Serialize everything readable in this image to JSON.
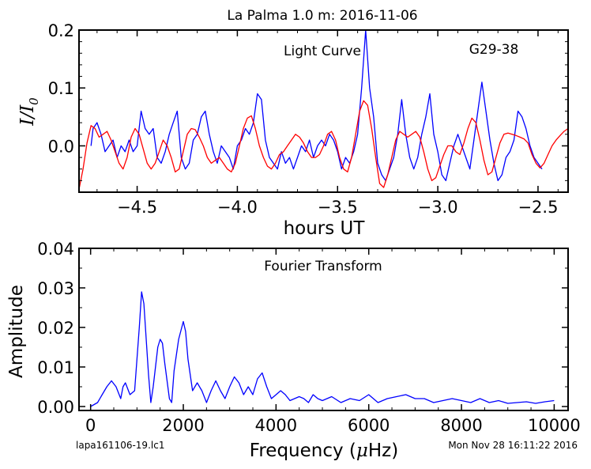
{
  "figure": {
    "title": "La Palma 1.0 m:  2016-11-06",
    "footer_left": "lapa161106-19.lc1",
    "footer_right": "Mon Nov 28 16:11:22 2016"
  },
  "chart_data": [
    {
      "type": "line",
      "title": "La Palma 1.0 m:  2016-11-06",
      "xlabel": "hours UT",
      "ylabel": "I/I₀",
      "annotations": [
        "Light Curve",
        "G29-38"
      ],
      "xlim": [
        -4.79,
        -2.35
      ],
      "ylim": [
        -0.08,
        0.2
      ],
      "xticks": [
        -4.5,
        -4.0,
        -3.5,
        -3.0,
        -2.5
      ],
      "xtick_labels": [
        "−4.5",
        "−4.0",
        "−3.5",
        "−3.0",
        "−2.5"
      ],
      "yticks": [
        0.0,
        0.1,
        0.2
      ],
      "ytick_labels": [
        "0.0",
        "0.1",
        "0.2"
      ],
      "grid": false,
      "series": [
        {
          "color": "#0000ff",
          "x": [
            -4.73,
            -4.72,
            -4.7,
            -4.68,
            -4.66,
            -4.64,
            -4.62,
            -4.6,
            -4.58,
            -4.56,
            -4.54,
            -4.52,
            -4.5,
            -4.48,
            -4.46,
            -4.44,
            -4.42,
            -4.4,
            -4.38,
            -4.36,
            -4.34,
            -4.32,
            -4.3,
            -4.28,
            -4.26,
            -4.24,
            -4.22,
            -4.2,
            -4.18,
            -4.16,
            -4.14,
            -4.12,
            -4.1,
            -4.08,
            -4.06,
            -4.04,
            -4.02,
            -4.0,
            -3.98,
            -3.96,
            -3.94,
            -3.92,
            -3.9,
            -3.88,
            -3.86,
            -3.84,
            -3.82,
            -3.8,
            -3.78,
            -3.76,
            -3.74,
            -3.72,
            -3.7,
            -3.68,
            -3.66,
            -3.64,
            -3.62,
            -3.6,
            -3.58,
            -3.56,
            -3.54,
            -3.52,
            -3.5,
            -3.48,
            -3.46,
            -3.44,
            -3.42,
            -3.4,
            -3.38,
            -3.36,
            -3.34,
            -3.32,
            -3.3,
            -3.28,
            -3.26,
            -3.24,
            -3.22,
            -3.2,
            -3.18,
            -3.16,
            -3.14,
            -3.12,
            -3.1,
            -3.08,
            -3.06,
            -3.04,
            -3.02,
            -3.0,
            -2.98,
            -2.96,
            -2.94,
            -2.92,
            -2.9,
            -2.88,
            -2.86,
            -2.84,
            -2.82,
            -2.8,
            -2.78,
            -2.76,
            -2.74,
            -2.72,
            -2.7,
            -2.68,
            -2.66,
            -2.64,
            -2.62,
            -2.6,
            -2.58,
            -2.56,
            -2.54,
            -2.52,
            -2.5,
            -2.48
          ],
          "y": [
            0.0,
            0.03,
            0.04,
            0.02,
            -0.01,
            0.0,
            0.01,
            -0.02,
            0.0,
            -0.01,
            0.01,
            -0.01,
            0.0,
            0.06,
            0.03,
            0.02,
            0.03,
            -0.02,
            -0.03,
            -0.01,
            0.02,
            0.04,
            0.06,
            -0.02,
            -0.04,
            -0.03,
            0.01,
            0.02,
            0.05,
            0.06,
            0.02,
            -0.01,
            -0.03,
            0.0,
            -0.01,
            -0.02,
            -0.04,
            0.0,
            0.01,
            0.03,
            0.02,
            0.04,
            0.09,
            0.08,
            0.01,
            -0.02,
            -0.03,
            -0.04,
            -0.01,
            -0.03,
            -0.02,
            -0.04,
            -0.02,
            0.0,
            -0.01,
            0.01,
            -0.02,
            0.0,
            0.01,
            0.0,
            0.02,
            0.01,
            -0.01,
            -0.04,
            -0.02,
            -0.03,
            -0.01,
            0.02,
            0.1,
            0.2,
            0.1,
            0.05,
            -0.03,
            -0.05,
            -0.06,
            -0.04,
            -0.02,
            0.02,
            0.08,
            0.02,
            -0.02,
            -0.04,
            -0.02,
            0.02,
            0.05,
            0.09,
            0.02,
            -0.01,
            -0.05,
            -0.06,
            -0.03,
            0.0,
            0.02,
            0.0,
            -0.02,
            -0.04,
            0.01,
            0.06,
            0.11,
            0.06,
            0.01,
            -0.03,
            -0.06,
            -0.05,
            -0.02,
            -0.01,
            0.01,
            0.06,
            0.05,
            0.03,
            0.0,
            -0.02,
            -0.03,
            -0.04
          ]
        },
        {
          "color": "#ff0000",
          "x": [
            -4.79,
            -4.77,
            -4.75,
            -4.73,
            -4.71,
            -4.69,
            -4.67,
            -4.65,
            -4.63,
            -4.61,
            -4.59,
            -4.57,
            -4.55,
            -4.53,
            -4.51,
            -4.49,
            -4.47,
            -4.45,
            -4.43,
            -4.41,
            -4.39,
            -4.37,
            -4.35,
            -4.33,
            -4.31,
            -4.29,
            -4.27,
            -4.25,
            -4.23,
            -4.21,
            -4.19,
            -4.17,
            -4.15,
            -4.13,
            -4.11,
            -4.09,
            -4.07,
            -4.05,
            -4.03,
            -4.01,
            -3.99,
            -3.97,
            -3.95,
            -3.93,
            -3.91,
            -3.89,
            -3.87,
            -3.85,
            -3.83,
            -3.81,
            -3.79,
            -3.77,
            -3.75,
            -3.73,
            -3.71,
            -3.69,
            -3.67,
            -3.65,
            -3.63,
            -3.61,
            -3.59,
            -3.57,
            -3.55,
            -3.53,
            -3.51,
            -3.49,
            -3.47,
            -3.45,
            -3.43,
            -3.41,
            -3.39,
            -3.37,
            -3.35,
            -3.33,
            -3.31,
            -3.29,
            -3.27,
            -3.25,
            -3.23,
            -3.21,
            -3.19,
            -3.17,
            -3.15,
            -3.13,
            -3.11,
            -3.09,
            -3.07,
            -3.05,
            -3.03,
            -3.01,
            -2.99,
            -2.97,
            -2.95,
            -2.93,
            -2.91,
            -2.89,
            -2.87,
            -2.85,
            -2.83,
            -2.81,
            -2.79,
            -2.77,
            -2.75,
            -2.73,
            -2.71,
            -2.69,
            -2.67,
            -2.65,
            -2.63,
            -2.61,
            -2.59,
            -2.57,
            -2.55,
            -2.53,
            -2.51,
            -2.49,
            -2.47,
            -2.45,
            -2.43,
            -2.41,
            -2.39,
            -2.37,
            -2.35
          ],
          "y": [
            -0.075,
            -0.04,
            0.005,
            0.035,
            0.03,
            0.015,
            0.02,
            0.025,
            0.01,
            -0.01,
            -0.03,
            -0.04,
            -0.02,
            0.015,
            0.03,
            0.02,
            -0.005,
            -0.03,
            -0.04,
            -0.03,
            -0.01,
            0.01,
            0.0,
            -0.02,
            -0.045,
            -0.04,
            -0.01,
            0.02,
            0.03,
            0.028,
            0.015,
            0.0,
            -0.02,
            -0.03,
            -0.025,
            -0.02,
            -0.03,
            -0.04,
            -0.045,
            -0.03,
            0.0,
            0.03,
            0.048,
            0.052,
            0.03,
            0.0,
            -0.02,
            -0.035,
            -0.04,
            -0.03,
            -0.015,
            -0.01,
            0.0,
            0.01,
            0.02,
            0.015,
            0.005,
            -0.01,
            -0.02,
            -0.02,
            -0.015,
            0.0,
            0.02,
            0.025,
            0.01,
            -0.02,
            -0.04,
            -0.045,
            -0.02,
            0.02,
            0.06,
            0.078,
            0.07,
            0.03,
            -0.02,
            -0.065,
            -0.072,
            -0.05,
            -0.02,
            0.01,
            0.025,
            0.02,
            0.015,
            0.02,
            0.025,
            0.015,
            -0.01,
            -0.04,
            -0.06,
            -0.055,
            -0.035,
            -0.015,
            0.0,
            0.0,
            -0.01,
            -0.015,
            0.005,
            0.03,
            0.048,
            0.04,
            0.01,
            -0.025,
            -0.05,
            -0.045,
            -0.02,
            0.005,
            0.02,
            0.022,
            0.02,
            0.018,
            0.015,
            0.012,
            0.005,
            -0.015,
            -0.03,
            -0.038,
            -0.03,
            -0.015,
            0.0,
            0.01,
            0.018,
            0.025,
            0.03
          ]
        }
      ]
    },
    {
      "type": "line",
      "title": "",
      "xlabel": "Frequency (μHz)",
      "ylabel": "Amplitude",
      "annotations": [
        "Fourier Transform"
      ],
      "xlim": [
        -250,
        10300
      ],
      "ylim": [
        -0.001,
        0.04
      ],
      "xticks": [
        0,
        2000,
        4000,
        6000,
        8000,
        10000
      ],
      "xtick_labels": [
        "0",
        "2000",
        "4000",
        "6000",
        "8000",
        "10000"
      ],
      "yticks": [
        0.0,
        0.01,
        0.02,
        0.03,
        0.04
      ],
      "ytick_labels": [
        "0.00",
        "0.01",
        "0.02",
        "0.03",
        "0.04"
      ],
      "grid": false,
      "series": [
        {
          "color": "#0000ff",
          "x": [
            0,
            150,
            250,
            350,
            450,
            550,
            650,
            700,
            750,
            850,
            950,
            1050,
            1100,
            1150,
            1250,
            1300,
            1350,
            1450,
            1500,
            1550,
            1600,
            1700,
            1750,
            1800,
            1900,
            2000,
            2050,
            2100,
            2200,
            2300,
            2400,
            2500,
            2600,
            2700,
            2800,
            2900,
            3000,
            3100,
            3200,
            3300,
            3400,
            3500,
            3600,
            3700,
            3800,
            3900,
            4000,
            4100,
            4200,
            4300,
            4400,
            4500,
            4600,
            4700,
            4800,
            4900,
            5000,
            5200,
            5400,
            5600,
            5800,
            6000,
            6200,
            6400,
            6600,
            6800,
            7000,
            7200,
            7400,
            7600,
            7800,
            8000,
            8200,
            8400,
            8600,
            8800,
            9000,
            9200,
            9400,
            9600,
            9800,
            10000
          ],
          "y": [
            0.0,
            0.001,
            0.003,
            0.005,
            0.0065,
            0.005,
            0.002,
            0.005,
            0.006,
            0.003,
            0.004,
            0.02,
            0.029,
            0.026,
            0.008,
            0.001,
            0.005,
            0.015,
            0.017,
            0.016,
            0.011,
            0.002,
            0.001,
            0.009,
            0.017,
            0.0215,
            0.019,
            0.012,
            0.004,
            0.006,
            0.004,
            0.001,
            0.004,
            0.0065,
            0.004,
            0.002,
            0.005,
            0.0075,
            0.006,
            0.003,
            0.005,
            0.003,
            0.007,
            0.0085,
            0.005,
            0.002,
            0.003,
            0.004,
            0.003,
            0.0015,
            0.002,
            0.0025,
            0.002,
            0.001,
            0.003,
            0.002,
            0.0015,
            0.0025,
            0.001,
            0.002,
            0.0015,
            0.003,
            0.001,
            0.002,
            0.0025,
            0.003,
            0.002,
            0.002,
            0.001,
            0.0015,
            0.002,
            0.0015,
            0.001,
            0.002,
            0.001,
            0.0015,
            0.0008,
            0.001,
            0.0012,
            0.0008,
            0.0012,
            0.0015
          ]
        }
      ]
    }
  ]
}
